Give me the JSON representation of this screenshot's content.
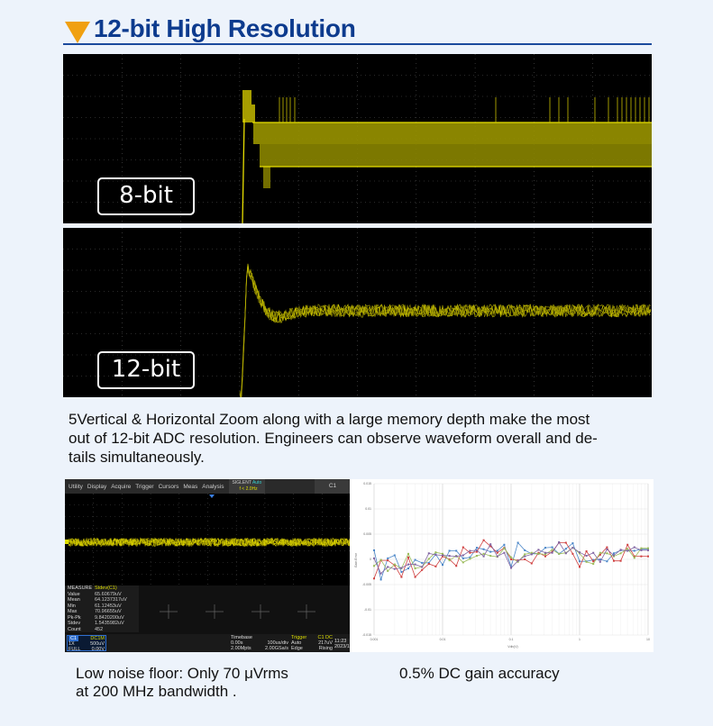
{
  "title": "12-bit High Resolution",
  "panels": {
    "top_label": "8-bit",
    "bottom_label": "12-bit"
  },
  "paragraph": {
    "lines": [
      "5Vertical & Horizontal Zoom along with a large memory depth make the most",
      "out of 12-bit ADC  resolution. Engineers can observe waveform overall and de-",
      "tails simultaneously."
    ]
  },
  "scope": {
    "menu": [
      "Utility",
      "Display",
      "Acquire",
      "Trigger",
      "Cursors",
      "Meas",
      "Analysis"
    ],
    "brand": "SIGLENT",
    "trigger_mode": "Auto",
    "frequency": "f < 2.0Hz",
    "channel": "C1",
    "measure": {
      "header": "MEASURE",
      "source": "Stdev(C1)",
      "rows": [
        {
          "label": "Value",
          "value": "65.60679uV"
        },
        {
          "label": "Mean",
          "value": "64.1237317uV"
        },
        {
          "label": "Min",
          "value": "61.12453uV"
        },
        {
          "label": "Max",
          "value": "70.96655uV"
        },
        {
          "label": "Pk-Pk",
          "value": "9.8420200uV"
        },
        {
          "label": "Stdev",
          "value": "1.5435982uV"
        },
        {
          "label": "Count",
          "value": "452"
        }
      ]
    },
    "channel_box": {
      "name": "C1",
      "coupling": "DC1M",
      "probe": "1X",
      "scale": "500uV",
      "bw": "FULL",
      "offset": "0.00V"
    },
    "timebase": {
      "label": "Timebase",
      "delay": "0.00s",
      "scale": "100us/div",
      "points": "2.00Mpts",
      "rate": "2.00GSa/s"
    },
    "trigger": {
      "label": "Trigger",
      "source": "C1 DC",
      "mode": "Auto",
      "level": "217uV",
      "type": "Edge",
      "slope": "Rising"
    },
    "clock": {
      "time": "11:23",
      "date": "2023/1"
    },
    "colors": {
      "trace": "#d8d800",
      "accent": "#2f6fd0"
    }
  },
  "chart_data": {
    "type": "line",
    "xlabel": "Vdiv(V)",
    "ylabel": "Gain Error",
    "xscale": "log",
    "xlim": [
      0.001,
      10
    ],
    "ylim": [
      -0.015,
      0.015
    ],
    "xticks": [
      "0.001",
      "0.01",
      "0.1",
      "1",
      "10"
    ],
    "yticks": [
      "-0.015",
      "-0.01",
      "-0.005",
      "0",
      "0.005",
      "0.01",
      "0.015"
    ],
    "grid": true,
    "x_note": "41 points, 10 per decade from 0.001 to 10",
    "series": [
      {
        "color": "#4a86c8",
        "values": [
          0.0018,
          -0.004,
          0.0002,
          0.0008,
          -0.0025,
          -0.0018,
          -0.0001,
          -0.0007,
          -0.0007,
          0.001,
          -0.0011,
          0.0017,
          0.0017,
          0.0002,
          0.0004,
          0.0023,
          0.002,
          0.0015,
          0.0017,
          0.0029,
          -0.0015,
          0.0033,
          0.0018,
          0.0011,
          0.0011,
          0.0023,
          0.0024,
          0.0011,
          0.0021,
          0.0032,
          -0.0004,
          -0.0004,
          -0.0001,
          0.0,
          -0.0004,
          0.0012,
          0.0018,
          0.0017,
          0.0017,
          0.002,
          0.002
        ]
      },
      {
        "color": "#d04040",
        "values": [
          -0.0038,
          -0.0002,
          -0.0002,
          -0.0012,
          -0.0035,
          0.0004,
          -0.0035,
          -0.0021,
          -0.0009,
          -0.0014,
          0.0006,
          0.0,
          -0.0013,
          0.0024,
          0.0013,
          0.0015,
          0.0038,
          0.0026,
          0.0013,
          0.0023,
          0.0,
          -0.0002,
          0.0,
          -0.0008,
          0.0013,
          0.0006,
          0.0015,
          0.0033,
          0.0033,
          0.0011,
          -0.0015,
          0.0016,
          -0.0004,
          0.0009,
          0.0024,
          -0.0003,
          -0.0003,
          0.0029,
          0.0006,
          0.0006,
          0.0006
        ]
      },
      {
        "color": "#9bbb59",
        "values": [
          -0.0013,
          -0.0001,
          -0.0023,
          -0.001,
          -0.0018,
          0.0011,
          -0.0018,
          -0.0015,
          0.0001,
          0.0014,
          0.0011,
          -0.0002,
          0.0007,
          -0.0006,
          0.0001,
          0.0007,
          0.0011,
          0.0007,
          0.0005,
          0.0022,
          0.0004,
          -0.0005,
          0.001,
          0.0013,
          0.0011,
          0.001,
          0.0019,
          0.0011,
          0.0013,
          0.0023,
          0.0012,
          -0.0005,
          -0.0009,
          0.0013,
          0.0012,
          0.0006,
          0.0012,
          0.0021,
          0.0003,
          0.0022,
          0.0022
        ]
      },
      {
        "color": "#8064a2",
        "values": [
          0.0002,
          -0.0028,
          -0.0015,
          -0.0019,
          -0.0017,
          -0.001,
          -0.001,
          -0.0015,
          0.0012,
          0.0009,
          0.0008,
          0.0007,
          0.0006,
          0.0008,
          0.0017,
          0.0018,
          0.0006,
          0.003,
          0.0006,
          0.0013,
          -0.0017,
          -0.0003,
          0.0006,
          0.001,
          0.0019,
          0.0013,
          0.0013,
          0.0034,
          0.0012,
          0.0023,
          0.0014,
          0.0007,
          0.0013,
          -0.0005,
          0.002,
          0.0008,
          0.0019,
          0.0017,
          0.0024,
          0.0018,
          0.0018
        ]
      }
    ]
  },
  "captions": {
    "left": [
      "Low noise floor: Only 70 μVrms",
      "at 200 MHz bandwidth ."
    ],
    "right": "0.5% DC gain accuracy"
  }
}
